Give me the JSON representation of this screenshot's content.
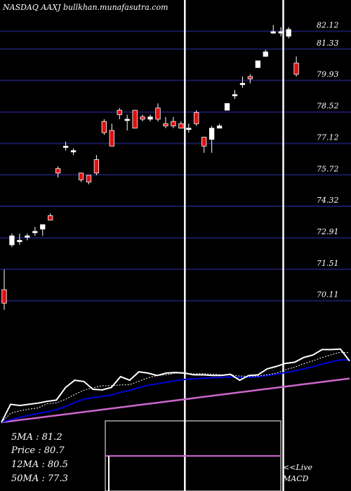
{
  "chart_data": {
    "type": "candlestick",
    "title": "NASDAQ AAXJ bullkhan.munafasutra.com",
    "y_ticks": [
      82.12,
      81.33,
      79.93,
      78.52,
      77.12,
      75.72,
      74.32,
      72.91,
      71.51,
      70.11
    ],
    "ylim": [
      69.6,
      83.2
    ],
    "candles": [
      {
        "o": 70.6,
        "h": 71.5,
        "l": 69.7,
        "c": 70.0
      },
      {
        "o": 72.6,
        "h": 73.1,
        "l": 72.5,
        "c": 73.0
      },
      {
        "o": 72.8,
        "h": 73.1,
        "l": 72.6,
        "c": 72.8
      },
      {
        "o": 73.0,
        "h": 73.1,
        "l": 72.8,
        "c": 73.0
      },
      {
        "o": 73.2,
        "h": 73.4,
        "l": 73.0,
        "c": 73.2
      },
      {
        "o": 73.3,
        "h": 73.5,
        "l": 73.0,
        "c": 73.5
      },
      {
        "o": 73.9,
        "h": 74.0,
        "l": 73.7,
        "c": 73.7
      },
      {
        "o": 76.0,
        "h": 76.1,
        "l": 75.6,
        "c": 75.8
      },
      {
        "o": 77.0,
        "h": 77.2,
        "l": 76.8,
        "c": 77.0
      },
      {
        "o": 76.8,
        "h": 76.9,
        "l": 76.6,
        "c": 76.8
      },
      {
        "o": 75.8,
        "h": 75.8,
        "l": 75.4,
        "c": 75.5
      },
      {
        "o": 75.7,
        "h": 75.7,
        "l": 75.3,
        "c": 75.4
      },
      {
        "o": 76.4,
        "h": 76.6,
        "l": 75.7,
        "c": 75.8
      },
      {
        "o": 78.1,
        "h": 78.2,
        "l": 77.5,
        "c": 77.6
      },
      {
        "o": 77.7,
        "h": 78.0,
        "l": 77.0,
        "c": 77.0
      },
      {
        "o": 78.6,
        "h": 78.7,
        "l": 78.2,
        "c": 78.4
      },
      {
        "o": 78.2,
        "h": 78.4,
        "l": 77.7,
        "c": 78.2
      },
      {
        "o": 78.6,
        "h": 78.6,
        "l": 77.8,
        "c": 77.8
      },
      {
        "o": 78.3,
        "h": 78.4,
        "l": 78.1,
        "c": 78.2
      },
      {
        "o": 78.2,
        "h": 78.4,
        "l": 78.1,
        "c": 78.3
      },
      {
        "o": 78.7,
        "h": 78.9,
        "l": 78.1,
        "c": 78.2
      },
      {
        "o": 78.0,
        "h": 78.3,
        "l": 77.8,
        "c": 77.9
      },
      {
        "o": 78.1,
        "h": 78.3,
        "l": 77.8,
        "c": 77.9
      },
      {
        "o": 78.0,
        "h": 78.1,
        "l": 77.8,
        "c": 77.8
      },
      {
        "o": 77.8,
        "h": 78.0,
        "l": 77.6,
        "c": 77.8
      },
      {
        "o": 78.5,
        "h": 78.6,
        "l": 77.9,
        "c": 78.0
      },
      {
        "o": 77.4,
        "h": 77.4,
        "l": 76.7,
        "c": 77.0
      },
      {
        "o": 77.3,
        "h": 77.9,
        "l": 76.7,
        "c": 77.8
      },
      {
        "o": 77.8,
        "h": 78.0,
        "l": 77.8,
        "c": 77.9
      },
      {
        "o": 78.6,
        "h": 78.9,
        "l": 78.6,
        "c": 78.9
      },
      {
        "o": 79.3,
        "h": 79.5,
        "l": 79.1,
        "c": 79.3
      },
      {
        "o": 79.8,
        "h": 80.1,
        "l": 79.6,
        "c": 79.8
      },
      {
        "o": 80.1,
        "h": 80.2,
        "l": 79.8,
        "c": 80.0
      },
      {
        "o": 80.5,
        "h": 80.8,
        "l": 80.5,
        "c": 80.8
      },
      {
        "o": 81.0,
        "h": 81.3,
        "l": 81.0,
        "c": 81.2
      },
      {
        "o": 82.1,
        "h": 82.4,
        "l": 82.0,
        "c": 82.1
      },
      {
        "o": 82.1,
        "h": 82.3,
        "l": 81.9,
        "c": 82.1
      },
      {
        "o": 81.9,
        "h": 82.3,
        "l": 81.8,
        "c": 82.2
      },
      {
        "o": 80.7,
        "h": 81.0,
        "l": 80.1,
        "c": 80.2
      }
    ],
    "vertical_lines": [
      23.5,
      36.3,
      48.5
    ],
    "legend": [
      {
        "label": "5MA",
        "value": "81.2"
      },
      {
        "label": "Price",
        "value": "80.7"
      },
      {
        "label": "12MA",
        "value": "80.5"
      },
      {
        "label": "50MA",
        "value": "77.3"
      }
    ],
    "macd_label": [
      "<<Live",
      "MACD"
    ]
  },
  "colors": {
    "gridline": "#1a1a5e",
    "up": "#ffffff",
    "down": "#e01010",
    "price_line": "#ffffff",
    "short_ma": "#ffffff",
    "mid_ma": "#0000dd",
    "long_ma": "#cc66cc",
    "vline": "#ffffff"
  }
}
